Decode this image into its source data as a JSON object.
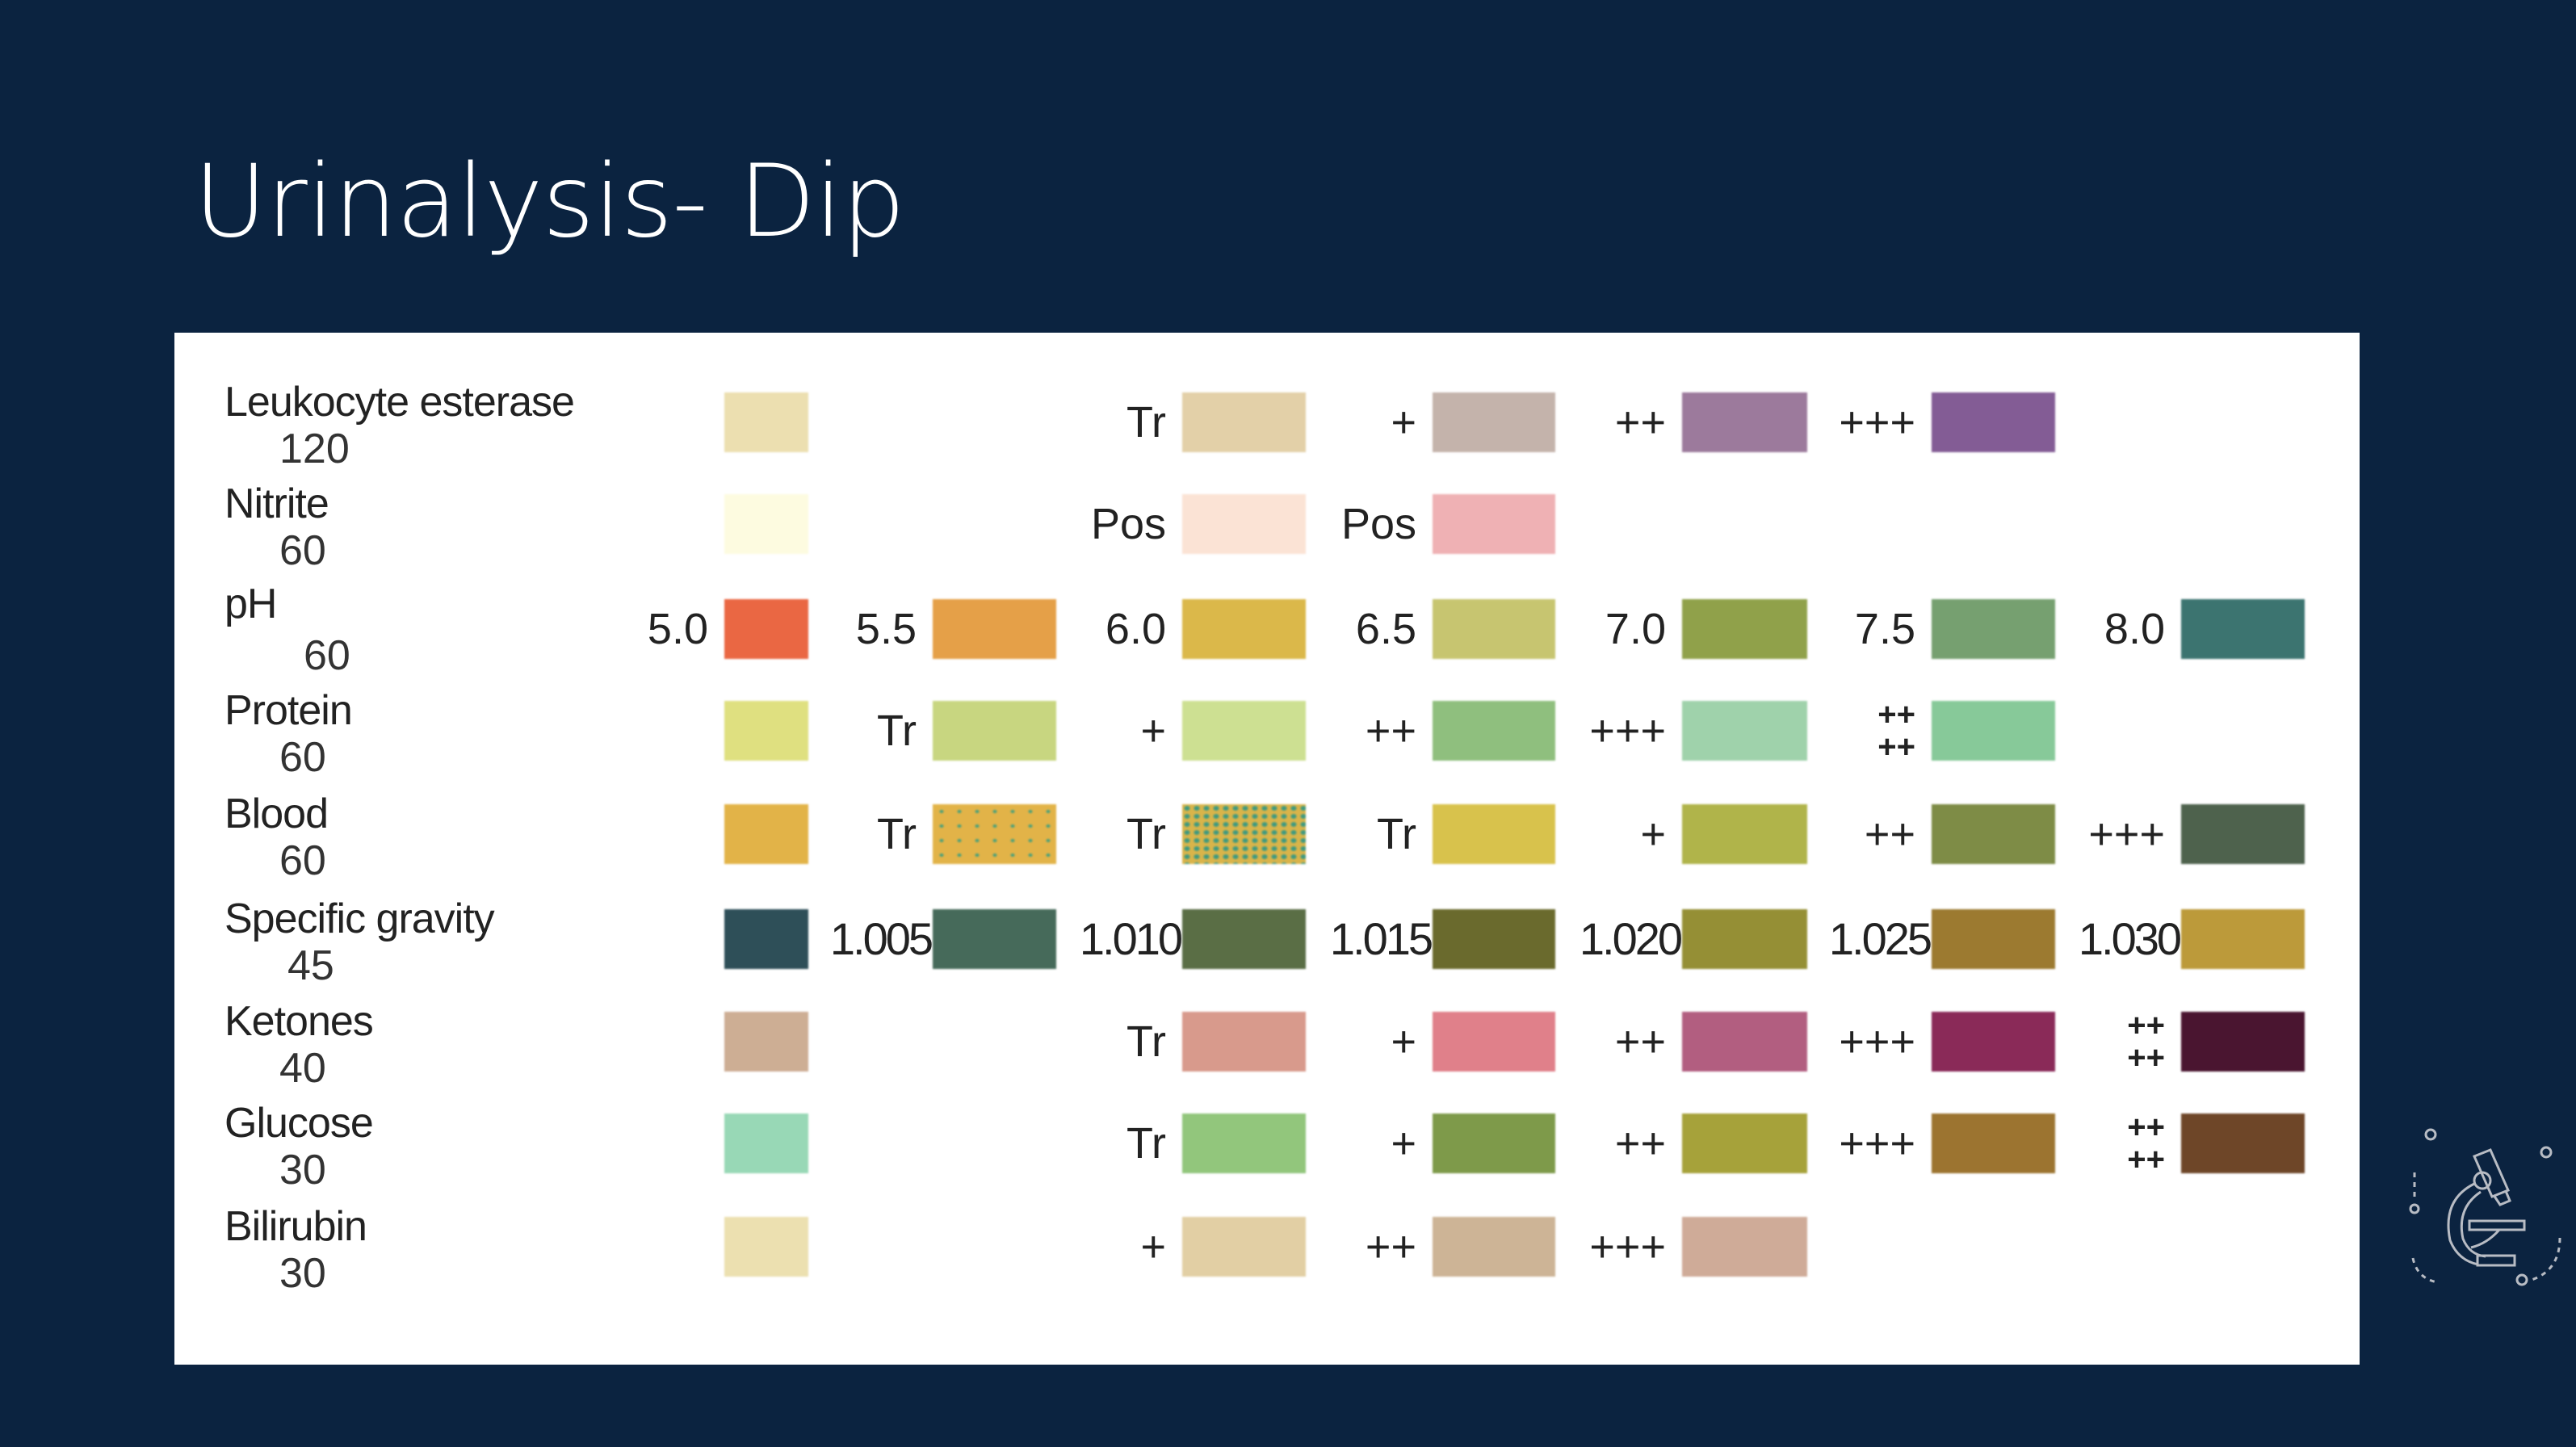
{
  "title": "Urinalysis- Dip",
  "rows": [
    {
      "name": "Leukocyte esterase",
      "time": "120",
      "cells": [
        {
          "label": "",
          "color": "#ecdfb0"
        },
        null,
        {
          "label": "Tr",
          "color": "#e3d0a8"
        },
        {
          "label": "+",
          "color": "#c4b3ab"
        },
        {
          "label": "++",
          "color": "#9c7a9c"
        },
        {
          "label": "+++",
          "color": "#835c95"
        },
        null
      ]
    },
    {
      "name": "Nitrite",
      "time": "60",
      "cells": [
        {
          "label": "",
          "color": "#fdfbe0"
        },
        null,
        {
          "label": "Pos",
          "color": "#fbe3d5"
        },
        {
          "label": "Pos",
          "color": "#efb1b4"
        },
        null,
        null,
        null
      ]
    },
    {
      "name": "pH",
      "time": "60",
      "cells": [
        {
          "label": "5.0",
          "color": "#ea6743"
        },
        {
          "label": "5.5",
          "color": "#e5a048"
        },
        {
          "label": "6.0",
          "color": "#dbb84a"
        },
        {
          "label": "6.5",
          "color": "#c7c570"
        },
        {
          "label": "7.0",
          "color": "#90a14a"
        },
        {
          "label": "7.5",
          "color": "#76a070"
        },
        {
          "label": "8.0",
          "color": "#3c7470"
        }
      ]
    },
    {
      "name": "Protein",
      "time": "60",
      "cells": [
        {
          "label": "",
          "color": "#dfe080"
        },
        {
          "label": "Tr",
          "color": "#c8d680"
        },
        {
          "label": "+",
          "color": "#cde092"
        },
        {
          "label": "++",
          "color": "#8fbf7e"
        },
        {
          "label": "+++",
          "color": "#9fd2ab"
        },
        {
          "label": "++++",
          "color": "#87c999"
        },
        null
      ]
    },
    {
      "name": "Blood",
      "time": "60",
      "cells": [
        {
          "label": "",
          "color": "#e2b348"
        },
        {
          "label": "Tr",
          "color": "#e2b348",
          "pattern": "speck1"
        },
        {
          "label": "Tr",
          "color": "#d9b44a",
          "pattern": "speck2"
        },
        {
          "label": "Tr",
          "color": "#d8c24c"
        },
        {
          "label": "+",
          "color": "#b0b44a"
        },
        {
          "label": "++",
          "color": "#7e8c46"
        },
        {
          "label": "+++",
          "color": "#4e624d"
        }
      ]
    },
    {
      "name": "Specific gravity",
      "time": "45",
      "cells": [
        {
          "label": "",
          "color": "#2e4f58"
        },
        {
          "label": "1.005",
          "color": "#466a5a"
        },
        {
          "label": "1.010",
          "color": "#5a6e45"
        },
        {
          "label": "1.015",
          "color": "#6a6a2d"
        },
        {
          "label": "1.020",
          "color": "#958f35"
        },
        {
          "label": "1.025",
          "color": "#9c7a30"
        },
        {
          "label": "1.030",
          "color": "#bc9a3a"
        }
      ]
    },
    {
      "name": "Ketones",
      "time": "40",
      "cells": [
        {
          "label": "",
          "color": "#cdae94"
        },
        null,
        {
          "label": "Tr",
          "color": "#d89a8c"
        },
        {
          "label": "+",
          "color": "#e0808a"
        },
        {
          "label": "++",
          "color": "#b25e80"
        },
        {
          "label": "+++",
          "color": "#8a2a58"
        },
        {
          "label": "++++",
          "color": "#4a1530"
        }
      ]
    },
    {
      "name": "Glucose",
      "time": "30",
      "cells": [
        {
          "label": "",
          "color": "#98d8b6"
        },
        null,
        {
          "label": "Tr",
          "color": "#92c67c"
        },
        {
          "label": "+",
          "color": "#7e9a4a"
        },
        {
          "label": "++",
          "color": "#a6a23a"
        },
        {
          "label": "+++",
          "color": "#9c7430"
        },
        {
          "label": "++++",
          "color": "#6e4628"
        }
      ]
    },
    {
      "name": "Bilirubin",
      "time": "30",
      "cells": [
        {
          "label": "",
          "color": "#ece0b0"
        },
        null,
        {
          "label": "+",
          "color": "#e2cfa4"
        },
        {
          "label": "++",
          "color": "#cdb496"
        },
        {
          "label": "+++",
          "color": "#cfab98"
        },
        null,
        null
      ]
    }
  ],
  "logo": {
    "icon": "microscope-icon",
    "color": "#b8bcc4"
  }
}
